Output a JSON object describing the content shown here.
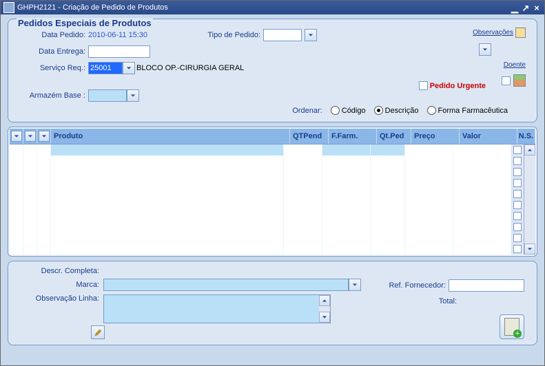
{
  "window": {
    "title": "GHPH2121 - Criação de Pedido de Produtos"
  },
  "section": {
    "legend": "Pedidos Especiais de Produtos"
  },
  "form": {
    "data_pedido_label": "Data Pedido:",
    "data_pedido_value": "2010-06-11 15:30",
    "data_entrega_label": "Data Entrega:",
    "data_entrega_value": "",
    "servico_label": "Serviço Req.:",
    "servico_value": "25001",
    "servico_desc": "BLOCO OP.-CIRURGIA GERAL",
    "tipo_pedido_label": "Tipo de Pedido:",
    "tipo_pedido_value": "",
    "armazem_label": "Armazém Base :",
    "armazem_value": "",
    "observacoes_label": "Observações",
    "doente_label": "Doente",
    "pedido_urgente_label": "Pedido Urgente"
  },
  "ordenar": {
    "label": "Ordenar:",
    "opt_codigo": "Código",
    "opt_descricao": "Descrição",
    "opt_forma": "Forma Farmacêutica",
    "selected": "descricao"
  },
  "table": {
    "headers": {
      "produto": "Produto",
      "qtpend": "QTPend",
      "ffarm": "F.Farm.",
      "qtped": "Qt.Ped",
      "preco": "Preço",
      "valor": "Valor",
      "ns": "N.S."
    },
    "row_count": 10
  },
  "bottom": {
    "descr_completa_label": "Descr. Completa:",
    "marca_label": "Marca:",
    "marca_value": "",
    "obs_linha_label": "Observação Linha:",
    "obs_linha_value": "",
    "ref_fornecedor_label": "Ref. Fornecedor:",
    "ref_fornecedor_value": "",
    "total_label": "Total:"
  },
  "colors": {
    "accent": "#193c8a",
    "panel_bg": "#dde7f4",
    "highlight": "#b9e0f7",
    "header_bg": "#8ab7e8",
    "urgent": "#c00"
  }
}
